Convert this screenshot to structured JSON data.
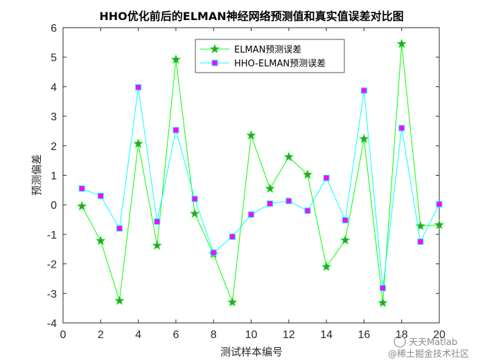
{
  "chart_data": {
    "type": "line",
    "title": "HHO优化前后的ELMAN神经网络预测值和真实值误差对比图",
    "xlabel": "测试样本编号",
    "ylabel": "预测偏差",
    "xlim": [
      0,
      20
    ],
    "ylim": [
      -4,
      6
    ],
    "xticks": [
      "0",
      "2",
      "4",
      "6",
      "8",
      "10",
      "12",
      "14",
      "16",
      "18",
      "20"
    ],
    "yticks": [
      "-4",
      "-3",
      "-2",
      "-1",
      "0",
      "1",
      "2",
      "3",
      "4",
      "5",
      "6"
    ],
    "grid": false,
    "legend_position": "top-center",
    "x": [
      1,
      2,
      3,
      4,
      5,
      6,
      7,
      8,
      9,
      10,
      11,
      12,
      13,
      14,
      15,
      16,
      17,
      18,
      19,
      20
    ],
    "series": [
      {
        "name": "ELMAN预测误差",
        "color": "#00ff00",
        "marker": "star",
        "marker_color": "#4d8c4d",
        "values": [
          -0.05,
          -1.22,
          -3.25,
          2.07,
          -1.38,
          4.92,
          -0.3,
          -1.67,
          -3.3,
          2.35,
          0.55,
          1.62,
          1.02,
          -2.1,
          -1.2,
          2.23,
          -3.32,
          5.45,
          -0.72,
          -0.68
        ]
      },
      {
        "name": "HHO-ELMAN预测误差",
        "color": "#00ffff",
        "marker": "square",
        "marker_color": "#ff00ff",
        "values": [
          0.55,
          0.3,
          -0.8,
          3.98,
          -0.57,
          2.53,
          0.2,
          -1.62,
          -1.08,
          -0.33,
          0.04,
          0.13,
          -0.2,
          0.91,
          -0.52,
          3.87,
          -2.82,
          2.6,
          -1.25,
          0.02
        ]
      }
    ]
  },
  "watermark": {
    "line1": "天天Matlab",
    "line2": "@稀土掘金技术社区"
  }
}
